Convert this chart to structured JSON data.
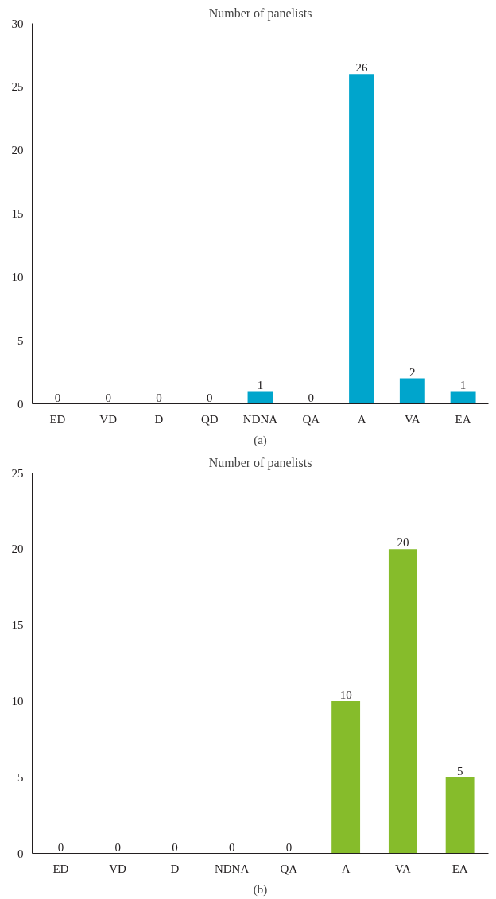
{
  "chart_data": [
    {
      "type": "bar",
      "title": "Number of panelists",
      "categories": [
        "ED",
        "VD",
        "D",
        "QD",
        "NDNA",
        "QA",
        "A",
        "VA",
        "EA"
      ],
      "values": [
        0,
        0,
        0,
        0,
        1,
        0,
        26,
        2,
        1
      ],
      "color": "#00a5cc",
      "ylim": [
        0,
        30
      ],
      "yticks": [
        0,
        5,
        10,
        15,
        20,
        25,
        30
      ],
      "grid": false,
      "data_labels": true,
      "annotations": [
        "(a)"
      ]
    },
    {
      "type": "bar",
      "title": "Number of panelists",
      "categories": [
        "ED",
        "VD",
        "D",
        "NDNA",
        "QA",
        "A",
        "VA",
        "EA"
      ],
      "values": [
        0,
        0,
        0,
        0,
        0,
        10,
        20,
        5
      ],
      "color": "#86bc2b",
      "ylim": [
        0,
        25
      ],
      "yticks": [
        0,
        5,
        10,
        15,
        20,
        25
      ],
      "grid": false,
      "data_labels": true,
      "annotations": [
        "(b)"
      ]
    }
  ]
}
